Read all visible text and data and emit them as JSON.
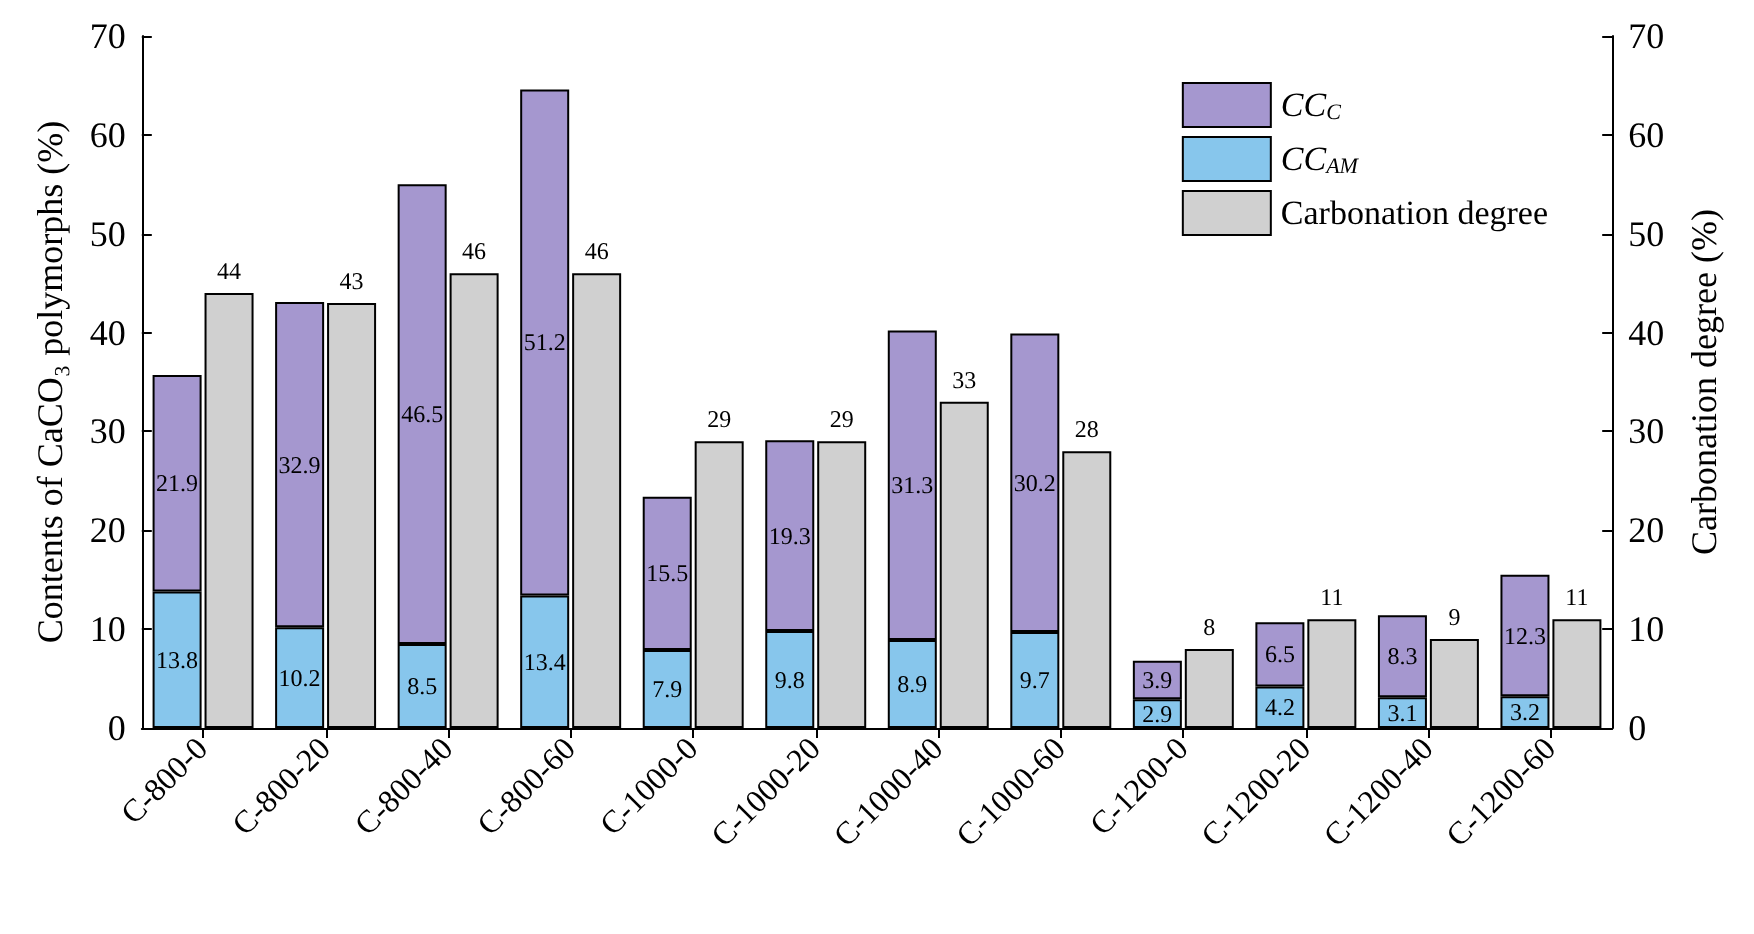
{
  "chart_data": {
    "type": "bar",
    "ylabel": "Contents of CaCO₃ polymorphs (%)",
    "y2label": "Carbonation degree (%)",
    "categories": [
      "C-800-0",
      "C-800-20",
      "C-800-40",
      "C-800-60",
      "C-1000-0",
      "C-1000-20",
      "C-1000-40",
      "C-1000-60",
      "C-1200-0",
      "C-1200-20",
      "C-1200-40",
      "C-1200-60"
    ],
    "series": [
      {
        "name": "CC$_{AM}$",
        "color": "#87c6ec",
        "values": [
          13.8,
          10.2,
          8.5,
          13.4,
          7.9,
          9.8,
          8.9,
          9.7,
          2.9,
          4.2,
          3.1,
          3.2
        ]
      },
      {
        "name": "CC$_{C}$",
        "color": "#a597cf",
        "values": [
          21.9,
          32.9,
          46.5,
          51.2,
          15.5,
          19.3,
          31.3,
          30.2,
          3.9,
          6.5,
          8.3,
          12.3
        ]
      },
      {
        "name": "Carbonation degree",
        "color": "#d0d0d0",
        "axis": "y2",
        "values": [
          44,
          43,
          46,
          46,
          29,
          29,
          33,
          28,
          8,
          11,
          9,
          11
        ]
      }
    ],
    "ylim": [
      0,
      70
    ],
    "yticks": [
      0,
      10,
      20,
      30,
      40,
      50,
      60,
      70
    ],
    "y2lim": [
      0,
      70
    ],
    "y2ticks": [
      0,
      10,
      20,
      30,
      40,
      50,
      60,
      70
    ],
    "data_labels": true,
    "stacked": true,
    "grid": false,
    "legend": "top right"
  }
}
